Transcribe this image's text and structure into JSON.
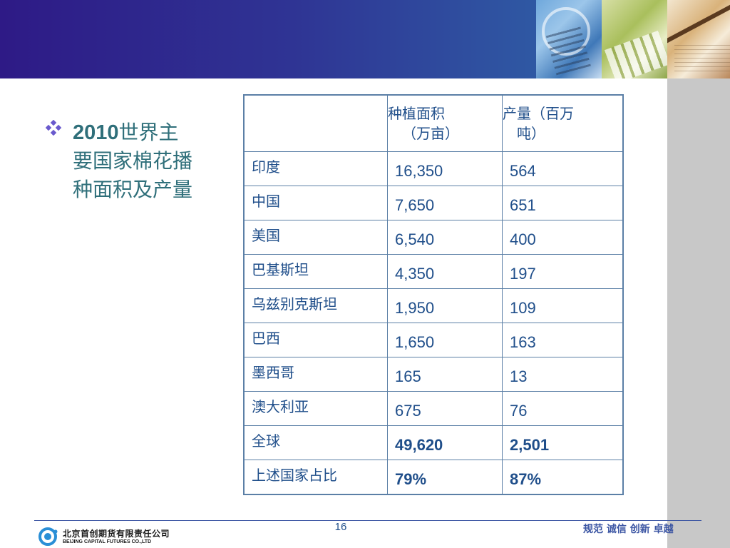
{
  "bullet": {
    "year": "2010",
    "title_rest": "世界主要国家棉花播种面积及产量"
  },
  "table": {
    "headers": {
      "area_line1": "种植面积",
      "area_line2": "（万亩）",
      "output_line1": "产量（百万",
      "output_line2": "吨）"
    },
    "rows": [
      {
        "country": "印度",
        "area": "16,350",
        "output": "564"
      },
      {
        "country": "中国",
        "area": "7,650",
        "output": "651"
      },
      {
        "country": "美国",
        "area": "6,540",
        "output": "400"
      },
      {
        "country": "巴基斯坦",
        "area": "4,350",
        "output": "197"
      },
      {
        "country": "乌兹别克斯坦",
        "area": "1,950",
        "output": "109"
      },
      {
        "country": "巴西",
        "area": "1,650",
        "output": "163"
      },
      {
        "country": "墨西哥",
        "area": "165",
        "output": "13"
      },
      {
        "country": "澳大利亚",
        "area": "675",
        "output": "76"
      },
      {
        "country": "全球",
        "area": "49,620",
        "output": "2,501"
      },
      {
        "country": "上述国家占比",
        "area": "79%",
        "output": "87%"
      }
    ]
  },
  "footer": {
    "company_cn": "北京首创期货有限责任公司",
    "company_en": "BEIJING CAPITAL FUTURES CO.,LTD",
    "page_number": "16",
    "slogan": "规范 诚信 创新 卓越"
  },
  "colors": {
    "header_band": "#2f3494",
    "accent_text": "#2f6f7a",
    "table_text": "#1f4e8a",
    "table_border": "#5b7fa6",
    "side_strip": "#c8c8c8"
  },
  "icons": {
    "bullet": "diamond-dots-icon",
    "logo": "company-logo-icon"
  }
}
